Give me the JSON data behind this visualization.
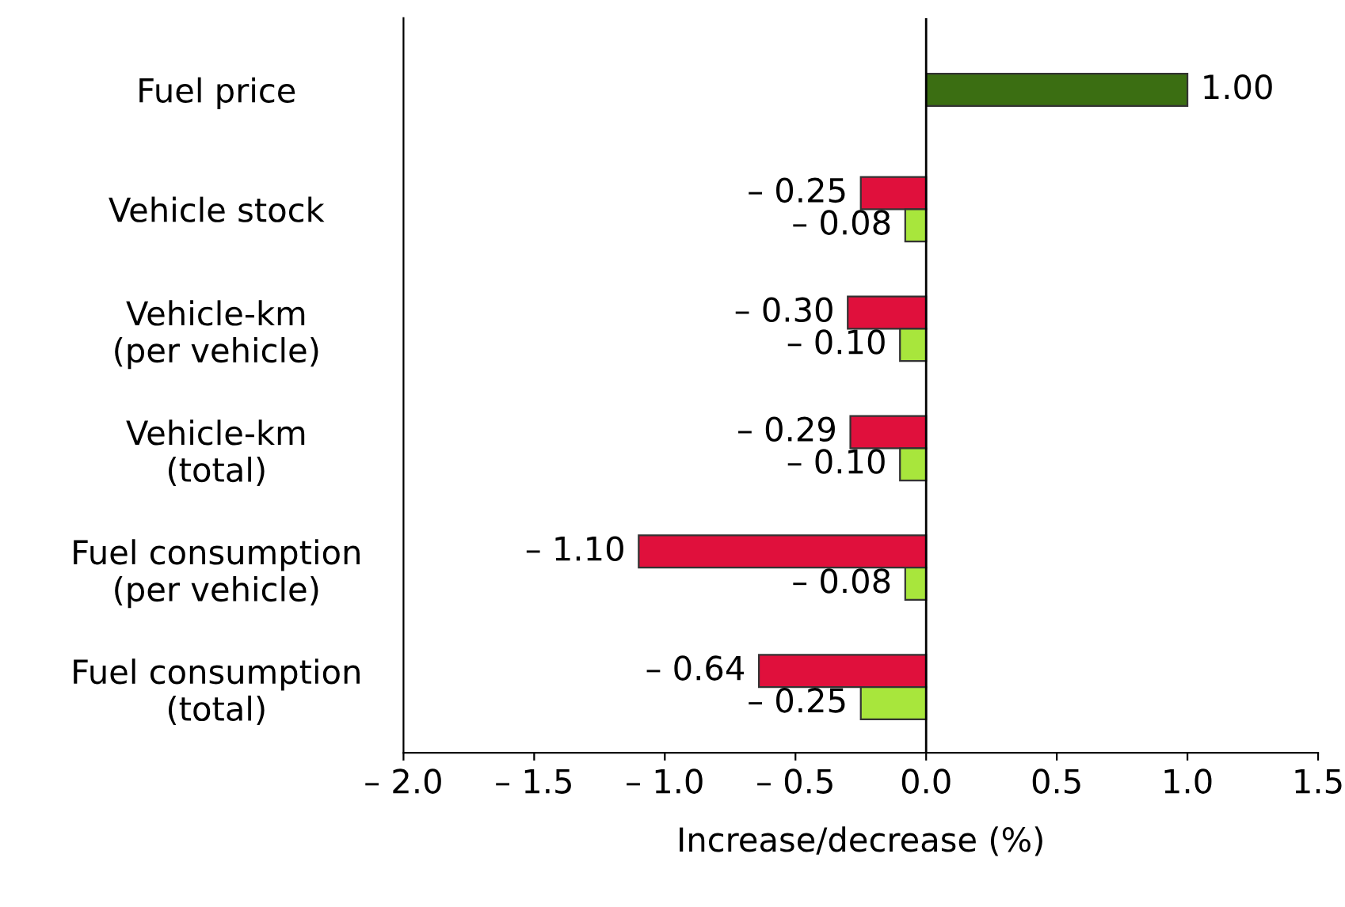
{
  "chart_data": {
    "type": "bar",
    "orientation": "horizontal",
    "xlabel": "Increase/decrease (%)",
    "categories": [
      "Fuel price",
      "Vehicle stock",
      "Vehicle-km\n(per vehicle)",
      "Vehicle-km\n(total)",
      "Fuel consumption\n(per vehicle)",
      "Fuel consumption\n(total)"
    ],
    "series": [
      {
        "colors": [
          "#3b6e12",
          "#e0103c",
          "#e0103c",
          "#e0103c",
          "#e0103c",
          "#e0103c"
        ],
        "values": [
          1.0,
          -0.25,
          -0.3,
          -0.29,
          -1.1,
          -0.64
        ],
        "value_labels": [
          "1.00",
          "– 0.25",
          "– 0.30",
          "– 0.29",
          "– 1.10",
          "– 0.64"
        ]
      },
      {
        "color": "#a8e63c",
        "values": [
          null,
          -0.08,
          -0.1,
          -0.1,
          -0.08,
          -0.25
        ],
        "value_labels": [
          null,
          "– 0.08",
          "– 0.10",
          "– 0.10",
          "– 0.08",
          "– 0.25"
        ]
      }
    ],
    "xlim": [
      -2.0,
      1.5
    ],
    "xticks": [
      {
        "value": -2.0,
        "label": "– 2.0"
      },
      {
        "value": -1.5,
        "label": "– 1.5"
      },
      {
        "value": -1.0,
        "label": "– 1.0"
      },
      {
        "value": -0.5,
        "label": "– 0.5"
      },
      {
        "value": 0.0,
        "label": "0.0"
      },
      {
        "value": 0.5,
        "label": "0.5"
      },
      {
        "value": 1.0,
        "label": "1.0"
      },
      {
        "value": 1.5,
        "label": "1.5"
      }
    ],
    "legend": false
  }
}
